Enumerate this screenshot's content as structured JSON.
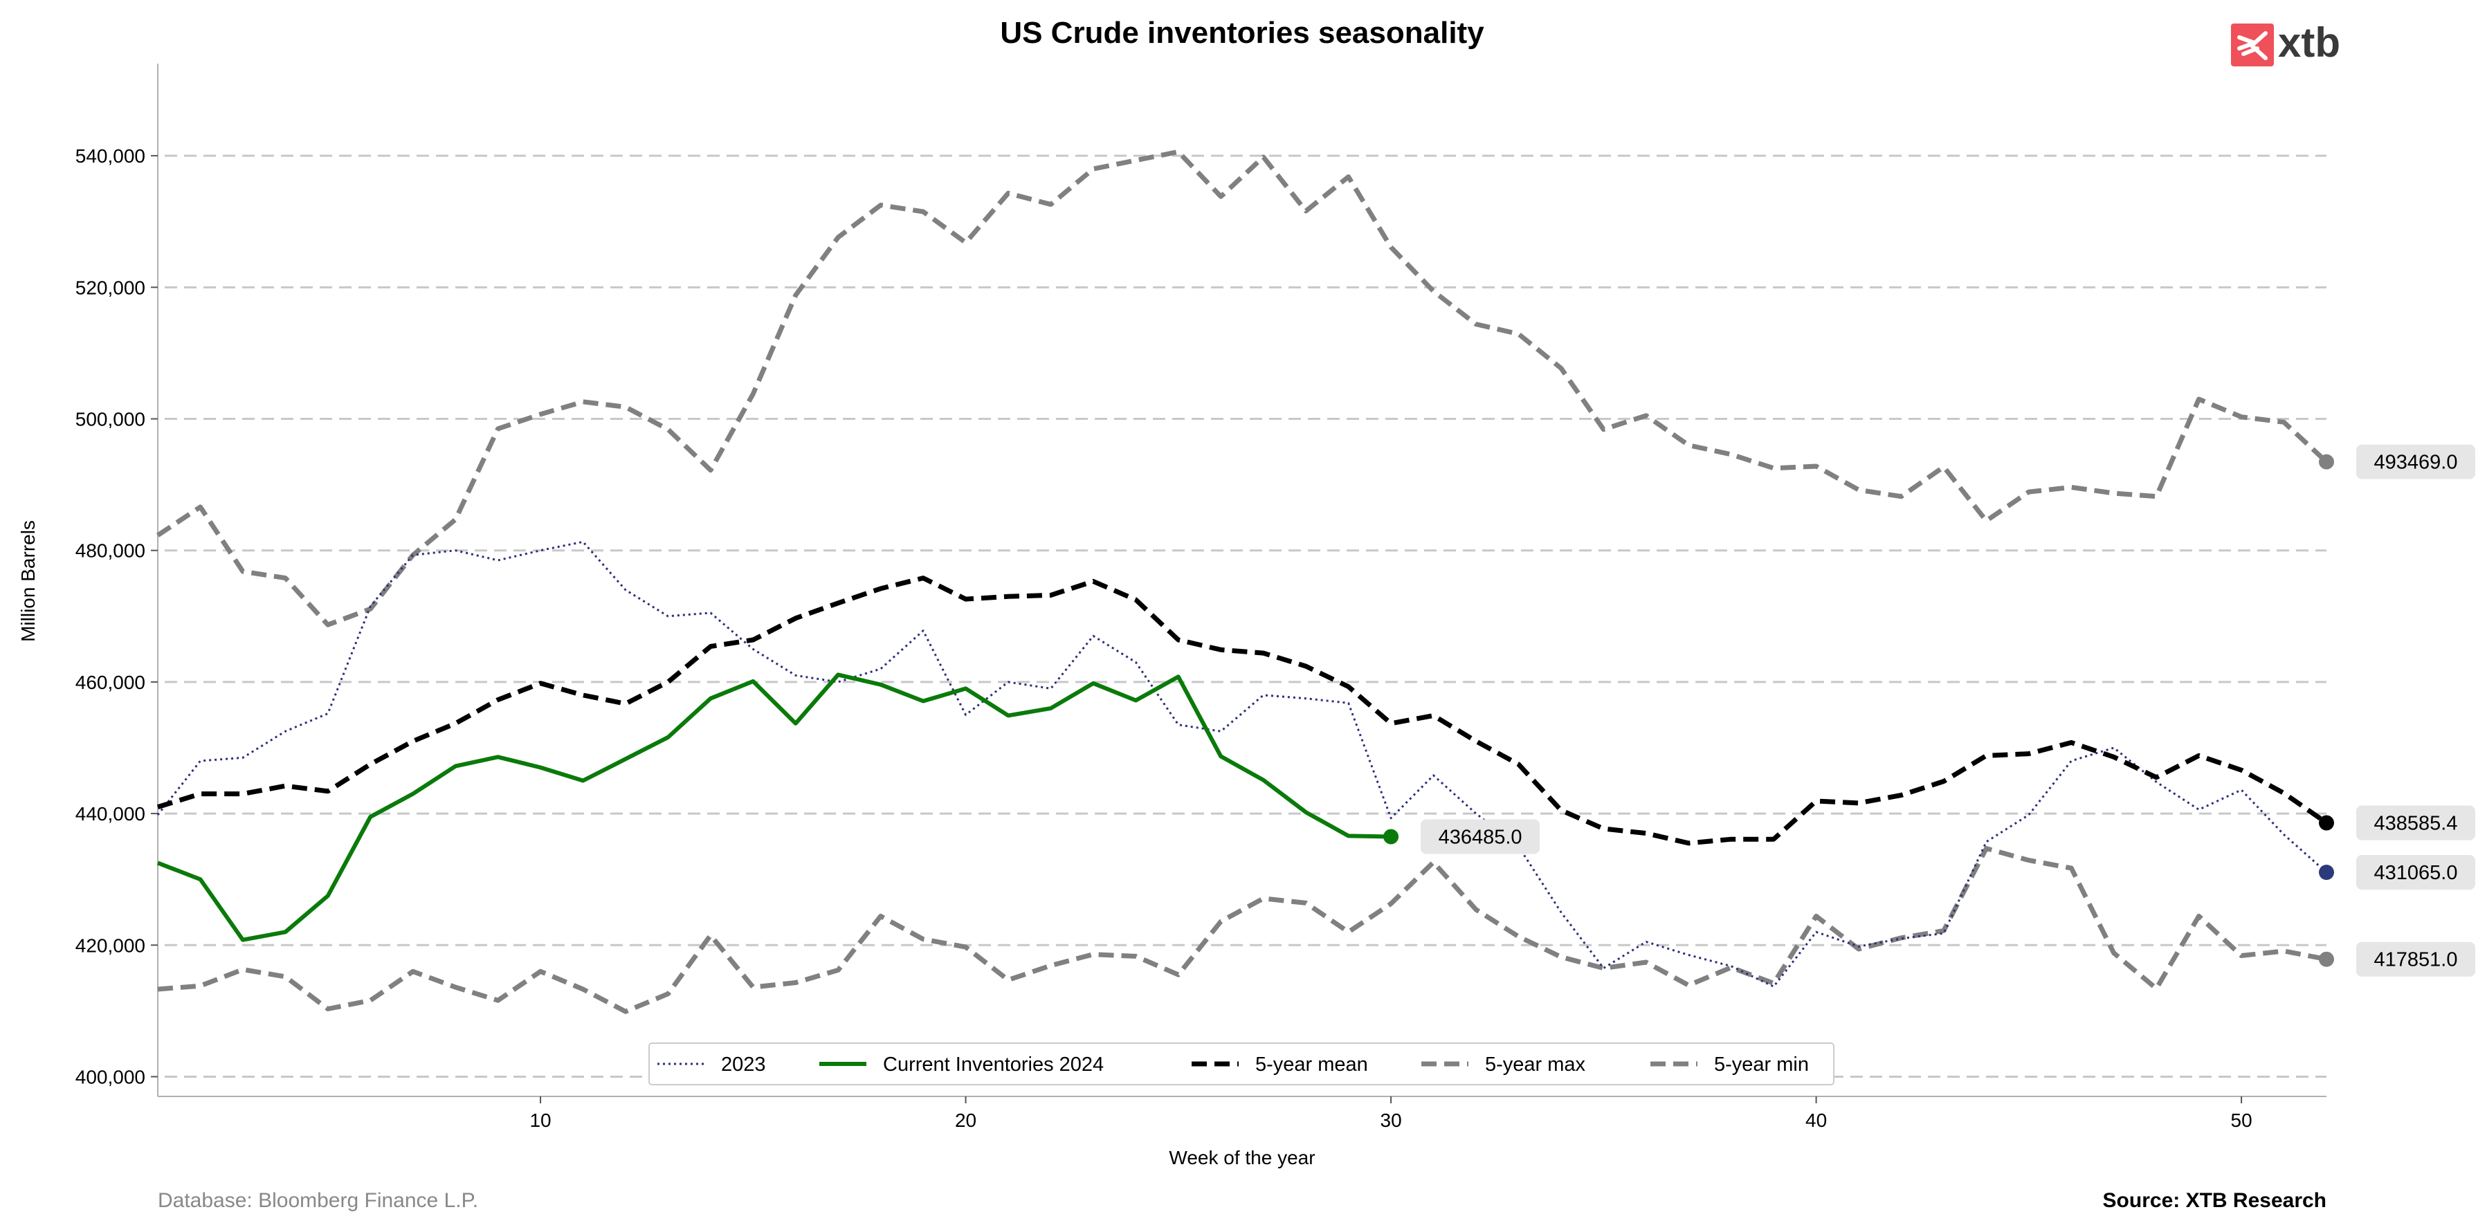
{
  "brand": {
    "logo_text": "xtb",
    "logo_icon": "xtb-logo-icon",
    "logo_color": "#f0505a"
  },
  "footer": {
    "database": "Database: Bloomberg Finance L.P.",
    "source": "Source: XTB Research"
  },
  "chart_data": {
    "type": "line",
    "title": "US Crude inventories seasonality",
    "xlabel": "Week of the year",
    "ylabel": "Million Barrels",
    "xlim": [
      1,
      52
    ],
    "ylim": [
      397000,
      554000
    ],
    "x_ticks": [
      10,
      20,
      30,
      40,
      50
    ],
    "y_ticks": [
      400000,
      420000,
      440000,
      460000,
      480000,
      500000,
      520000,
      540000
    ],
    "y_tick_labels": [
      "400,000",
      "420,000",
      "440,000",
      "460,000",
      "480,000",
      "500,000",
      "520,000",
      "540,000"
    ],
    "grid": "horizontal dashed",
    "legend_position": "bottom-center",
    "series": [
      {
        "name": "2023",
        "color": "#2b2f7a",
        "style": "dotted",
        "x": [
          1,
          2,
          3,
          4,
          5,
          6,
          7,
          8,
          9,
          10,
          11,
          12,
          13,
          14,
          15,
          16,
          17,
          18,
          19,
          20,
          21,
          22,
          23,
          24,
          25,
          26,
          27,
          28,
          29,
          30,
          31,
          32,
          33,
          34,
          35,
          36,
          37,
          38,
          39,
          40,
          41,
          42,
          43,
          44,
          45,
          46,
          47,
          48,
          49,
          50,
          51,
          52
        ],
        "values": [
          439800,
          448000,
          448500,
          452500,
          455200,
          471500,
          479300,
          480000,
          478500,
          480000,
          481300,
          474000,
          470000,
          470500,
          465000,
          461000,
          460000,
          462000,
          467800,
          455000,
          460000,
          459000,
          467000,
          463000,
          453500,
          452500,
          458000,
          457500,
          456800,
          439300,
          445800,
          440000,
          435000,
          425000,
          416500,
          420500,
          418500,
          416800,
          413700,
          422000,
          419800,
          421000,
          421800,
          435700,
          439800,
          448000,
          450000,
          444800,
          440600,
          443600,
          436800,
          431065
        ]
      },
      {
        "name": "Current Inventories 2024",
        "color": "#0a7a0a",
        "style": "solid",
        "x": [
          1,
          2,
          3,
          4,
          5,
          6,
          7,
          8,
          9,
          10,
          11,
          12,
          13,
          14,
          15,
          16,
          17,
          18,
          19,
          20,
          21,
          22,
          23,
          24,
          25,
          26,
          27,
          28,
          29,
          30
        ],
        "values": [
          432500,
          430000,
          420800,
          422000,
          427500,
          439500,
          443000,
          447200,
          448600,
          447000,
          445000,
          448300,
          451600,
          457500,
          460100,
          453700,
          461100,
          459600,
          457100,
          459000,
          454900,
          456000,
          459800,
          457200,
          460800,
          448700,
          445100,
          440200,
          436600,
          436485
        ]
      },
      {
        "name": "5-year mean",
        "color": "#000000",
        "style": "dashed",
        "x": [
          1,
          2,
          3,
          4,
          5,
          6,
          7,
          8,
          9,
          10,
          11,
          12,
          13,
          14,
          15,
          16,
          17,
          18,
          19,
          20,
          21,
          22,
          23,
          24,
          25,
          26,
          27,
          28,
          29,
          30,
          31,
          32,
          33,
          34,
          35,
          36,
          37,
          38,
          39,
          40,
          41,
          42,
          43,
          44,
          45,
          46,
          47,
          48,
          49,
          50,
          51,
          52
        ],
        "values": [
          441000,
          443000,
          443000,
          444200,
          443400,
          447500,
          451000,
          453700,
          457300,
          459800,
          458000,
          456700,
          460000,
          465400,
          466400,
          469700,
          472000,
          474200,
          475800,
          472600,
          473000,
          473200,
          475300,
          472500,
          466400,
          464900,
          464400,
          462400,
          459300,
          453700,
          454900,
          451000,
          447500,
          440500,
          437700,
          437000,
          435500,
          436100,
          436100,
          441900,
          441600,
          442800,
          444900,
          448800,
          449100,
          450800,
          448600,
          445500,
          448800,
          446600,
          443100,
          438585.4
        ]
      },
      {
        "name": "5-year max",
        "color": "#808080",
        "style": "dashed",
        "x": [
          1,
          2,
          3,
          4,
          5,
          6,
          7,
          8,
          9,
          10,
          11,
          12,
          13,
          14,
          15,
          16,
          17,
          18,
          19,
          20,
          21,
          22,
          23,
          24,
          25,
          26,
          27,
          28,
          29,
          30,
          31,
          32,
          33,
          34,
          35,
          36,
          37,
          38,
          39,
          40,
          41,
          42,
          43,
          44,
          45,
          46,
          47,
          48,
          49,
          50,
          51,
          52
        ],
        "values": [
          482300,
          486600,
          476800,
          475800,
          468700,
          471100,
          479300,
          484700,
          498500,
          500700,
          502600,
          501800,
          498400,
          492200,
          503800,
          518800,
          527600,
          532500,
          531500,
          526800,
          534300,
          532600,
          538000,
          539300,
          540600,
          533800,
          539800,
          531600,
          536800,
          526100,
          519400,
          514400,
          512900,
          507700,
          498400,
          500500,
          496000,
          494600,
          492500,
          492800,
          489200,
          488200,
          492700,
          484500,
          488900,
          489600,
          488700,
          488200,
          503000,
          500300,
          499500,
          493469
        ]
      },
      {
        "name": "5-year min",
        "color": "#808080",
        "style": "dashed",
        "x": [
          1,
          2,
          3,
          4,
          5,
          6,
          7,
          8,
          9,
          10,
          11,
          12,
          13,
          14,
          15,
          16,
          17,
          18,
          19,
          20,
          21,
          22,
          23,
          24,
          25,
          26,
          27,
          28,
          29,
          30,
          31,
          32,
          33,
          34,
          35,
          36,
          37,
          38,
          39,
          40,
          41,
          42,
          43,
          44,
          45,
          46,
          47,
          48,
          49,
          50,
          51,
          52
        ],
        "values": [
          413300,
          413800,
          416300,
          415200,
          410300,
          411600,
          416000,
          413600,
          411600,
          416000,
          413300,
          409900,
          412600,
          421500,
          413600,
          414300,
          416200,
          424400,
          420900,
          419700,
          414700,
          416900,
          418600,
          418300,
          415500,
          423600,
          427100,
          426400,
          422000,
          426300,
          432600,
          425400,
          421300,
          418200,
          416500,
          417400,
          413900,
          416600,
          414200,
          424400,
          419400,
          421100,
          422200,
          434700,
          432900,
          431700,
          418800,
          413400,
          424400,
          418400,
          419100,
          417851
        ]
      }
    ],
    "end_labels": [
      {
        "series": "5-year max",
        "value": "493469.0",
        "color": "#808080",
        "x": 52,
        "y": 493469
      },
      {
        "series": "5-year mean",
        "value": "438585.4",
        "color": "#000000",
        "x": 52,
        "y": 438585.4
      },
      {
        "series": "2023",
        "value": "431065.0",
        "color": "#2b3a7a",
        "x": 52,
        "y": 431065
      },
      {
        "series": "5-year min",
        "value": "417851.0",
        "color": "#808080",
        "x": 52,
        "y": 417851
      },
      {
        "series": "Current Inventories 2024",
        "value": "436485.0",
        "color": "#0a7a0a",
        "x": 30,
        "y": 436485
      }
    ]
  }
}
